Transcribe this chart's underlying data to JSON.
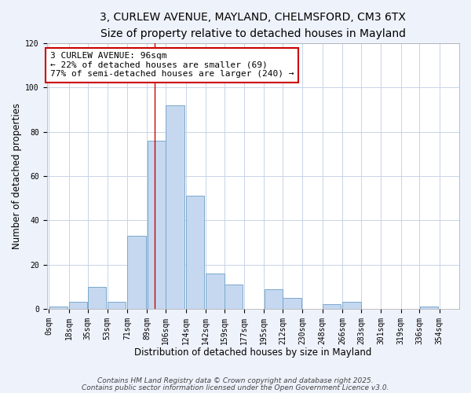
{
  "title_line1": "3, CURLEW AVENUE, MAYLAND, CHELMSFORD, CM3 6TX",
  "title_line2": "Size of property relative to detached houses in Mayland",
  "xlabel": "Distribution of detached houses by size in Mayland",
  "ylabel": "Number of detached properties",
  "bar_left_edges": [
    0,
    18,
    35,
    53,
    71,
    89,
    106,
    124,
    142,
    159,
    177,
    195,
    212,
    230,
    248,
    266,
    283,
    301,
    319,
    336
  ],
  "bar_heights": [
    1,
    3,
    10,
    3,
    33,
    76,
    92,
    51,
    16,
    11,
    0,
    9,
    5,
    0,
    2,
    3,
    0,
    0,
    0,
    1
  ],
  "bin_width": 17,
  "bar_color": "#c5d8f0",
  "bar_edge_color": "#7aa8cc",
  "ylim": [
    0,
    120
  ],
  "xlim": [
    -2,
    372
  ],
  "tick_labels": [
    "0sqm",
    "18sqm",
    "35sqm",
    "53sqm",
    "71sqm",
    "89sqm",
    "106sqm",
    "124sqm",
    "142sqm",
    "159sqm",
    "177sqm",
    "195sqm",
    "212sqm",
    "230sqm",
    "248sqm",
    "266sqm",
    "283sqm",
    "301sqm",
    "319sqm",
    "336sqm",
    "354sqm"
  ],
  "tick_positions": [
    0,
    18,
    35,
    53,
    71,
    89,
    106,
    124,
    142,
    159,
    177,
    195,
    212,
    230,
    248,
    266,
    283,
    301,
    319,
    336,
    354
  ],
  "red_line_x": 96,
  "annotation_title": "3 CURLEW AVENUE: 96sqm",
  "annotation_line2": "← 22% of detached houses are smaller (69)",
  "annotation_line3": "77% of semi-detached houses are larger (240) →",
  "footer_line1": "Contains HM Land Registry data © Crown copyright and database right 2025.",
  "footer_line2": "Contains public sector information licensed under the Open Government Licence v3.0.",
  "background_color": "#eef2fb",
  "plot_bg_color": "#ffffff",
  "grid_color": "#c8d4e8",
  "title_fontsize": 10,
  "subtitle_fontsize": 9,
  "axis_label_fontsize": 8.5,
  "tick_fontsize": 7,
  "annotation_fontsize": 8,
  "footer_fontsize": 6.5
}
